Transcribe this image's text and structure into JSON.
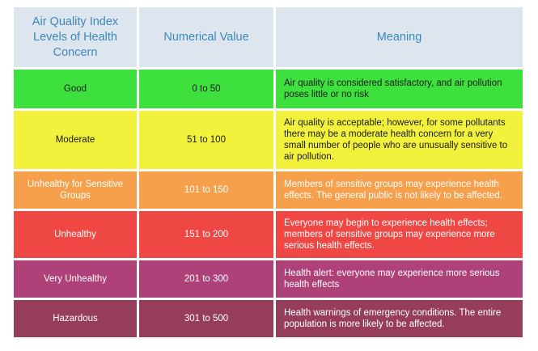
{
  "headers": {
    "level": "Air Quality Index Levels of Health Concern",
    "value": "Numerical Value",
    "meaning": "Meaning"
  },
  "rows": [
    {
      "level": "Good",
      "value": "0 to 50",
      "meaning": "Air quality is considered satisfactory, and air pollution poses little or no risk",
      "color": "#3ee03e",
      "text_color": "#1a1a1a"
    },
    {
      "level": "Moderate",
      "value": "51 to 100",
      "meaning": "Air quality is acceptable; however, for some pollutants there may be a moderate health concern for a very small number of people who are unusually sensitive to air pollution.",
      "color": "#f2f23c",
      "text_color": "#1a1a1a"
    },
    {
      "level": "Unhealthy for Sensitive Groups",
      "value": "101 to 150",
      "meaning": "Members of sensitive groups may experience health effects. The general public is not likely to be affected.",
      "color": "#f7a04c",
      "text_color": "#ffffff"
    },
    {
      "level": "Unhealthy",
      "value": "151 to 200",
      "meaning": "Everyone may begin to experience health effects; members of sensitive groups may experience more serious health effects.",
      "color": "#ef4744",
      "text_color": "#ffffff"
    },
    {
      "level": "Very Unhealthy",
      "value": "201 to 300",
      "meaning": "Health alert: everyone may experience more serious health effects",
      "color": "#ad4178",
      "text_color": "#ffffff"
    },
    {
      "level": "Hazardous",
      "value": "301 to 500",
      "meaning": "Health warnings of emergency conditions. The entire population is more likely to be affected.",
      "color": "#963d5b",
      "text_color": "#ffffff"
    }
  ]
}
